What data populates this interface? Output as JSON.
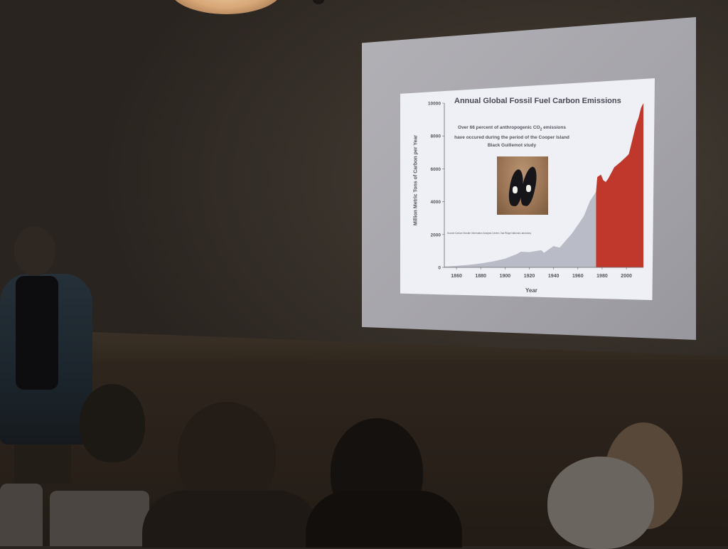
{
  "slide": {
    "title": "Annual Global Fossil Fuel Carbon Emissions",
    "subtitle_line1": "Over 66 percent of anthropogenic CO",
    "subtitle_sub": "2",
    "subtitle_line2": " emissions",
    "subtitle_line3": "have occured during the period of the Cooper Island",
    "subtitle_line4": "Black Guillemot study",
    "source": "Source:Carbon Dioxide Information Analysis Center, Oak Ridge National Laboratory"
  },
  "chart_data": {
    "type": "area",
    "title": "Annual Global Fossil Fuel Carbon Emissions",
    "xlabel": "Year",
    "ylabel": "Million Metric Tons of Carbon per Year",
    "xlim": [
      1850,
      2014
    ],
    "ylim": [
      0,
      10000
    ],
    "x_ticks": [
      1860,
      1880,
      1900,
      1920,
      1940,
      1960,
      1980,
      2000
    ],
    "y_ticks": [
      0,
      2000,
      4000,
      6000,
      8000,
      10000
    ],
    "grid": false,
    "series": [
      {
        "color": "#b9bcc6",
        "x": [
          1850,
          1860,
          1870,
          1880,
          1890,
          1900,
          1910,
          1913,
          1920,
          1930,
          1932,
          1940,
          1945,
          1950,
          1955,
          1960,
          1965,
          1970,
          1975
        ],
        "values": [
          50,
          90,
          150,
          240,
          360,
          530,
          820,
          950,
          930,
          1050,
          880,
          1300,
          1200,
          1630,
          2050,
          2580,
          3130,
          4050,
          4600
        ]
      },
      {
        "color": "#c0382c",
        "x": [
          1975,
          1976,
          1979,
          1981,
          1983,
          1985,
          1990,
          1995,
          2000,
          2002,
          2005,
          2008,
          2010,
          2012,
          2014
        ],
        "values": [
          4600,
          5500,
          5650,
          5300,
          5200,
          5400,
          6100,
          6400,
          6750,
          6900,
          7800,
          8700,
          9100,
          9700,
          10000
        ]
      }
    ]
  }
}
